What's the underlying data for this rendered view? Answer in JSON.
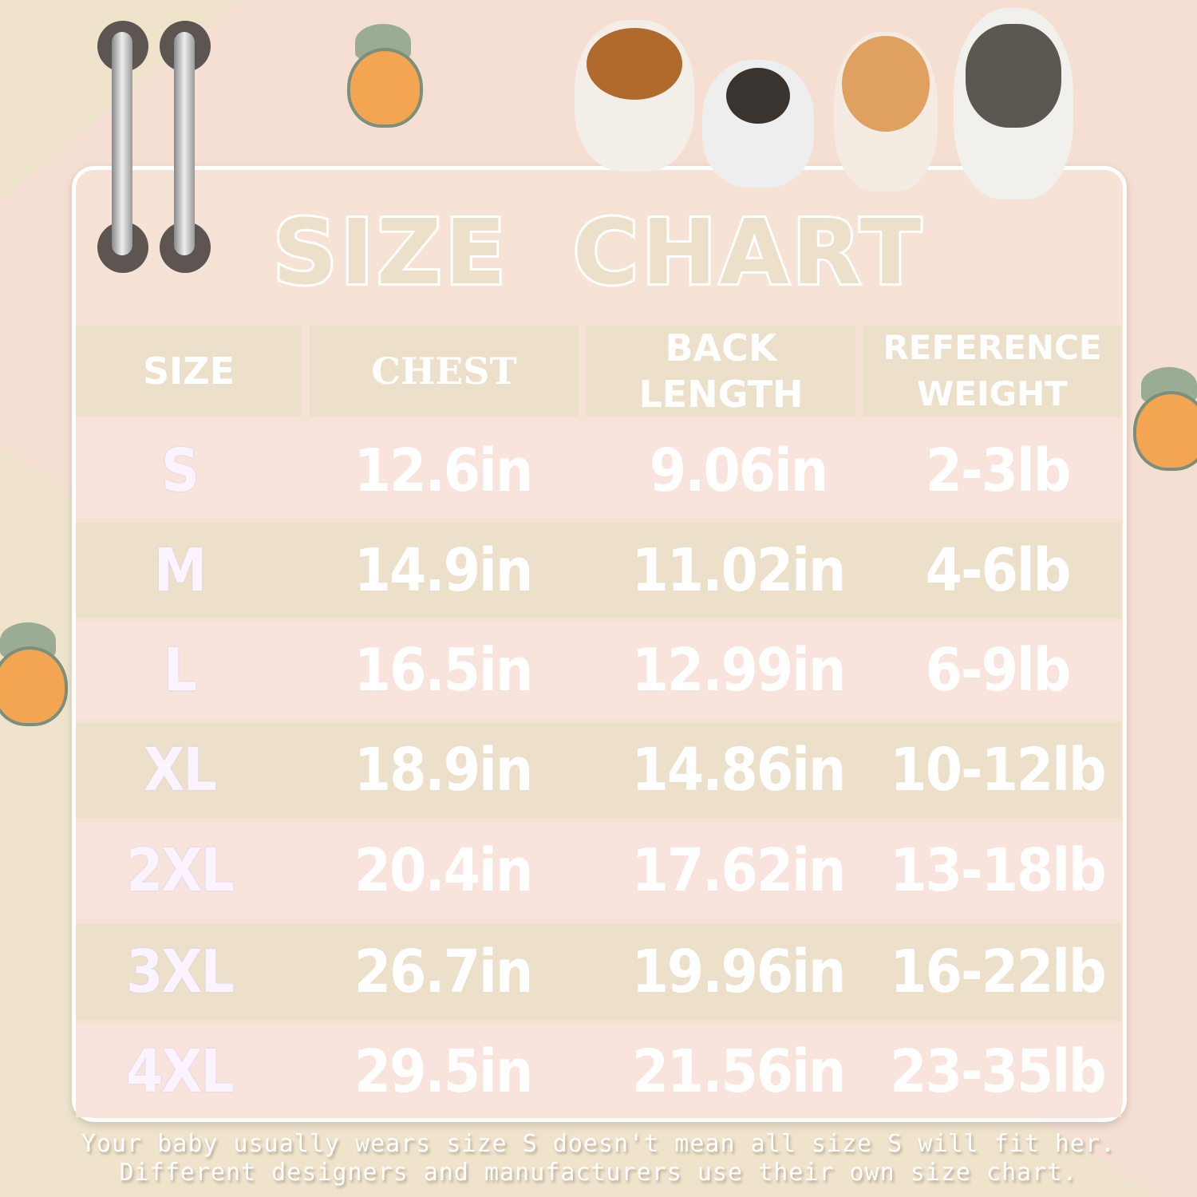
{
  "title": [
    "SIZE",
    "CHART"
  ],
  "table": {
    "headers": [
      "SIZE",
      "CHEST",
      "BACK LENGTH",
      "REFERENCE WEIGHT"
    ],
    "rows": [
      [
        "S",
        "12.6in",
        "9.06in",
        "2-3lb"
      ],
      [
        "M",
        "14.9in",
        "11.02in",
        "4-6lb"
      ],
      [
        "L",
        "16.5in",
        "12.99in",
        "6-9lb"
      ],
      [
        "XL",
        "18.9in",
        "14.86in",
        "10-12lb"
      ],
      [
        "2XL",
        "20.4in",
        "17.62in",
        "13-18lb"
      ],
      [
        "3XL",
        "26.7in",
        "19.96in",
        "16-22lb"
      ],
      [
        "4XL",
        "29.5in",
        "21.56in",
        "23-35lb"
      ]
    ]
  },
  "note": [
    "Your baby usually wears size S doesn't mean all size S will fit her.",
    "Different designers and manufacturers use their own size chart."
  ],
  "colors": {
    "header": "#ede0cb",
    "row_pink": "#f8e4dc",
    "row_beige": "#ede0cb",
    "text": "#ffffff"
  },
  "decorations": [
    "hanger-pole-icon",
    "fruit-icon",
    "dog-photo"
  ]
}
